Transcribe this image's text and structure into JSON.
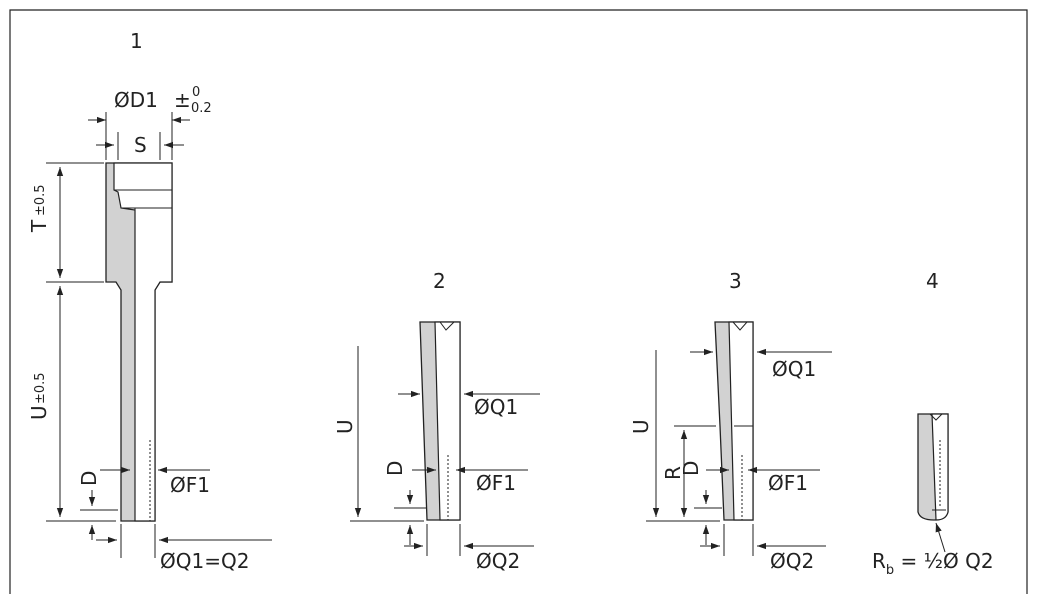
{
  "views": [
    {
      "number": "1"
    },
    {
      "number": "2"
    },
    {
      "number": "3"
    },
    {
      "number": "4"
    }
  ],
  "labels": {
    "d1": "ØD1",
    "tol_plus_minus": "±",
    "tol_upper": "0",
    "tol_lower": "0.2",
    "s": "S",
    "t": "T",
    "t_tol": "±0.5",
    "u": "U",
    "u_tol": "±0.5",
    "d": "D",
    "f1": "ØF1",
    "q1": "ØQ1",
    "q2": "ØQ2",
    "q1_eq_q2": "ØQ1=Q2",
    "r": "R",
    "rb": "R",
    "rb_sub": "b",
    "rb_eq": " = ½Ø Q2"
  }
}
